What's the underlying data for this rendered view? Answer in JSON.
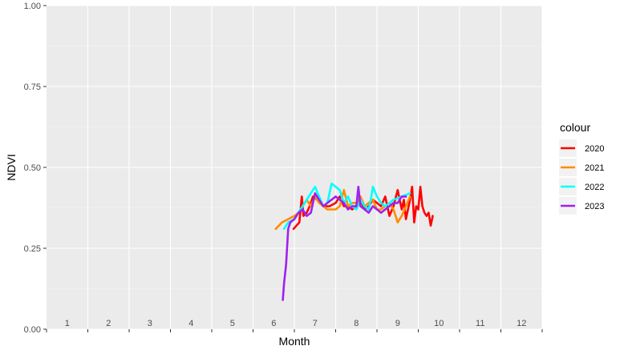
{
  "chart_data": {
    "type": "line",
    "xlabel": "Month",
    "ylabel": "NDVI",
    "ylim": [
      0,
      1
    ],
    "y_ticks": [
      "0.00",
      "0.25",
      "0.50",
      "0.75",
      "1.00"
    ],
    "month_labels": [
      "1",
      "2",
      "3",
      "4",
      "5",
      "6",
      "7",
      "8",
      "9",
      "10",
      "11",
      "12"
    ],
    "grid": true,
    "legend": {
      "title": "colour",
      "placement": "right"
    },
    "series": [
      {
        "name": "2020",
        "color": "#ff0000",
        "points": [
          [
            5.98,
            0.31
          ],
          [
            6.05,
            0.32
          ],
          [
            6.12,
            0.33
          ],
          [
            6.18,
            0.41
          ],
          [
            6.22,
            0.35
          ],
          [
            6.3,
            0.36
          ],
          [
            6.37,
            0.38
          ],
          [
            6.45,
            0.41
          ],
          [
            6.55,
            0.4
          ],
          [
            6.7,
            0.38
          ],
          [
            6.85,
            0.38
          ],
          [
            7.0,
            0.39
          ],
          [
            7.1,
            0.41
          ],
          [
            7.2,
            0.38
          ],
          [
            7.3,
            0.38
          ],
          [
            7.4,
            0.37
          ],
          [
            7.5,
            0.38
          ],
          [
            7.6,
            0.4
          ],
          [
            7.7,
            0.37
          ],
          [
            7.8,
            0.38
          ],
          [
            7.9,
            0.4
          ],
          [
            8.0,
            0.39
          ],
          [
            8.1,
            0.38
          ],
          [
            8.2,
            0.41
          ],
          [
            8.3,
            0.35
          ],
          [
            8.4,
            0.38
          ],
          [
            8.5,
            0.43
          ],
          [
            8.55,
            0.4
          ],
          [
            8.6,
            0.37
          ],
          [
            8.65,
            0.4
          ],
          [
            8.7,
            0.34
          ],
          [
            8.8,
            0.4
          ],
          [
            8.85,
            0.44
          ],
          [
            8.9,
            0.33
          ],
          [
            8.95,
            0.38
          ],
          [
            9.0,
            0.37
          ],
          [
            9.05,
            0.44
          ],
          [
            9.1,
            0.38
          ],
          [
            9.15,
            0.36
          ],
          [
            9.2,
            0.35
          ],
          [
            9.25,
            0.36
          ],
          [
            9.3,
            0.32
          ],
          [
            9.35,
            0.35
          ]
        ]
      },
      {
        "name": "2021",
        "color": "#ff8c00",
        "points": [
          [
            5.55,
            0.31
          ],
          [
            5.7,
            0.33
          ],
          [
            5.85,
            0.34
          ],
          [
            6.0,
            0.35
          ],
          [
            6.1,
            0.36
          ],
          [
            6.2,
            0.38
          ],
          [
            6.3,
            0.4
          ],
          [
            6.4,
            0.38
          ],
          [
            6.5,
            0.41
          ],
          [
            6.6,
            0.39
          ],
          [
            6.7,
            0.38
          ],
          [
            6.8,
            0.37
          ],
          [
            6.9,
            0.37
          ],
          [
            7.0,
            0.37
          ],
          [
            7.1,
            0.38
          ],
          [
            7.2,
            0.43
          ],
          [
            7.3,
            0.38
          ],
          [
            7.4,
            0.39
          ],
          [
            7.5,
            0.39
          ],
          [
            7.6,
            0.41
          ],
          [
            7.7,
            0.38
          ],
          [
            7.8,
            0.39
          ],
          [
            7.9,
            0.4
          ],
          [
            8.0,
            0.37
          ],
          [
            8.1,
            0.37
          ],
          [
            8.2,
            0.38
          ],
          [
            8.3,
            0.39
          ],
          [
            8.4,
            0.37
          ],
          [
            8.5,
            0.33
          ],
          [
            8.6,
            0.35
          ],
          [
            8.7,
            0.38
          ],
          [
            8.8,
            0.41
          ]
        ]
      },
      {
        "name": "2022",
        "color": "#00ffff",
        "points": [
          [
            5.75,
            0.31
          ],
          [
            5.85,
            0.33
          ],
          [
            6.0,
            0.34
          ],
          [
            6.1,
            0.36
          ],
          [
            6.2,
            0.38
          ],
          [
            6.3,
            0.4
          ],
          [
            6.4,
            0.42
          ],
          [
            6.5,
            0.44
          ],
          [
            6.6,
            0.41
          ],
          [
            6.7,
            0.38
          ],
          [
            6.8,
            0.39
          ],
          [
            6.9,
            0.45
          ],
          [
            7.0,
            0.44
          ],
          [
            7.1,
            0.43
          ],
          [
            7.2,
            0.39
          ],
          [
            7.3,
            0.41
          ],
          [
            7.4,
            0.38
          ],
          [
            7.5,
            0.37
          ],
          [
            7.6,
            0.4
          ],
          [
            7.7,
            0.38
          ],
          [
            7.8,
            0.37
          ],
          [
            7.85,
            0.4
          ],
          [
            7.9,
            0.44
          ],
          [
            8.0,
            0.41
          ],
          [
            8.1,
            0.39
          ],
          [
            8.2,
            0.38
          ],
          [
            8.3,
            0.39
          ],
          [
            8.4,
            0.4
          ],
          [
            8.6,
            0.41
          ],
          [
            8.8,
            0.42
          ]
        ]
      },
      {
        "name": "2023",
        "color": "#a020f0",
        "points": [
          [
            5.72,
            0.09
          ],
          [
            5.75,
            0.14
          ],
          [
            5.8,
            0.2
          ],
          [
            5.85,
            0.31
          ],
          [
            5.9,
            0.33
          ],
          [
            6.0,
            0.34
          ],
          [
            6.1,
            0.36
          ],
          [
            6.2,
            0.37
          ],
          [
            6.3,
            0.35
          ],
          [
            6.4,
            0.36
          ],
          [
            6.5,
            0.42
          ],
          [
            6.6,
            0.4
          ],
          [
            6.7,
            0.38
          ],
          [
            6.8,
            0.39
          ],
          [
            6.9,
            0.4
          ],
          [
            7.0,
            0.41
          ],
          [
            7.1,
            0.4
          ],
          [
            7.2,
            0.39
          ],
          [
            7.3,
            0.37
          ],
          [
            7.4,
            0.38
          ],
          [
            7.5,
            0.38
          ],
          [
            7.55,
            0.44
          ],
          [
            7.6,
            0.38
          ],
          [
            7.7,
            0.37
          ],
          [
            7.8,
            0.36
          ],
          [
            7.9,
            0.38
          ],
          [
            8.0,
            0.37
          ],
          [
            8.1,
            0.36
          ],
          [
            8.2,
            0.37
          ],
          [
            8.3,
            0.38
          ],
          [
            8.4,
            0.39
          ],
          [
            8.5,
            0.39
          ],
          [
            8.6,
            0.41
          ],
          [
            8.7,
            0.41
          ]
        ]
      }
    ]
  }
}
